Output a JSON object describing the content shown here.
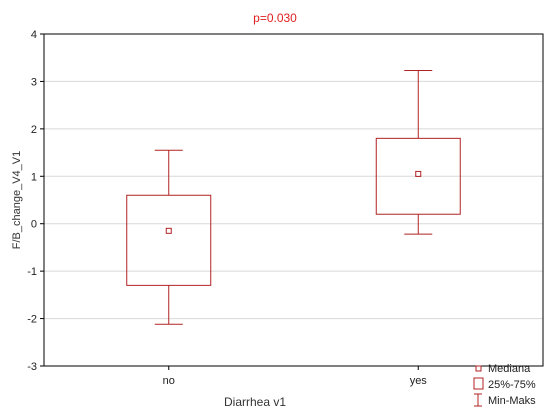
{
  "chart_data": {
    "type": "box",
    "title": "p=0.030",
    "xlabel": "Diarrhea v1",
    "ylabel": "F/B_change_V4_V1",
    "categories": [
      "no",
      "yes"
    ],
    "ylim": [
      -3,
      4
    ],
    "yticks": [
      "4",
      "3",
      "2",
      "1",
      "0",
      "-1",
      "-2",
      "-3"
    ],
    "grid": true,
    "legend_position": "bottom-right",
    "series": [
      {
        "category": "no",
        "median": -0.15,
        "q1": -1.3,
        "q3": 0.6,
        "min": -2.12,
        "max": 1.55
      },
      {
        "category": "yes",
        "median": 1.05,
        "q1": 0.2,
        "q3": 1.8,
        "min": -0.22,
        "max": 3.23
      }
    ],
    "legend": {
      "median": "Mediana",
      "iqr": "25%-75%",
      "range": "Min-Maks"
    },
    "colors": {
      "box": "#b22222",
      "title": "#e02020",
      "grid": "#d8d8d8"
    }
  }
}
